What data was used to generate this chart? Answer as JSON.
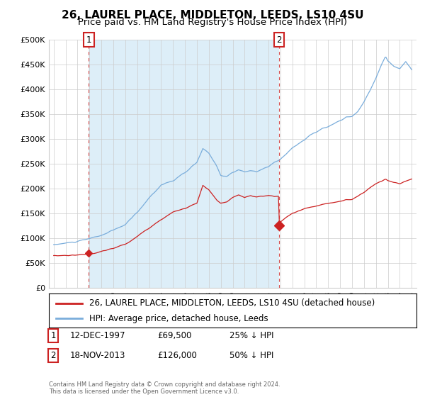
{
  "title": "26, LAUREL PLACE, MIDDLETON, LEEDS, LS10 4SU",
  "subtitle": "Price paid vs. HM Land Registry's House Price Index (HPI)",
  "ylim": [
    0,
    500000
  ],
  "yticks": [
    0,
    50000,
    100000,
    150000,
    200000,
    250000,
    300000,
    350000,
    400000,
    450000,
    500000
  ],
  "ytick_labels": [
    "£0",
    "£50K",
    "£100K",
    "£150K",
    "£200K",
    "£250K",
    "£300K",
    "£350K",
    "£400K",
    "£450K",
    "£500K"
  ],
  "hpi_color": "#7aaddb",
  "hpi_fill_color": "#ddeef8",
  "price_color": "#cc2222",
  "sale1_date_num": 1997.95,
  "sale1_price": 69500,
  "sale2_date_num": 2013.88,
  "sale2_price": 126000,
  "legend_line1": "26, LAUREL PLACE, MIDDLETON, LEEDS, LS10 4SU (detached house)",
  "legend_line2": "HPI: Average price, detached house, Leeds",
  "footnote": "Contains HM Land Registry data © Crown copyright and database right 2024.\nThis data is licensed under the Open Government Licence v3.0.",
  "background_color": "#ffffff",
  "grid_color": "#cccccc",
  "title_fontsize": 11,
  "subtitle_fontsize": 9.5,
  "tick_fontsize": 8,
  "legend_fontsize": 8.5,
  "annot_fontsize": 8.5
}
